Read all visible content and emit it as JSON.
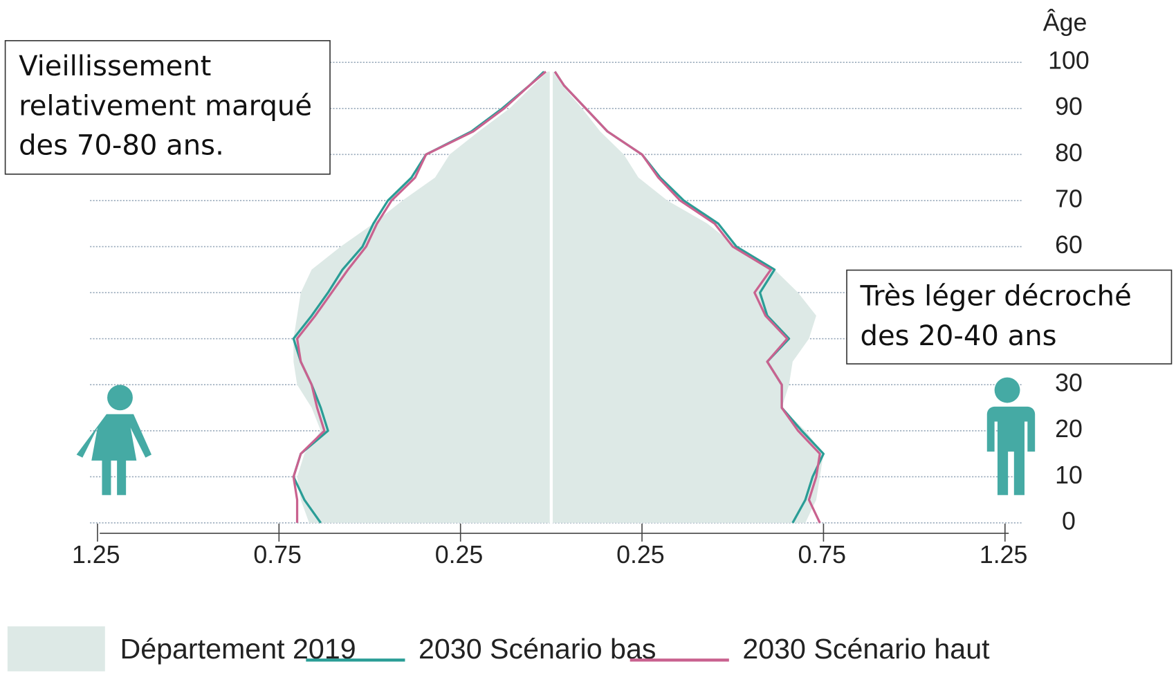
{
  "chart_data": {
    "type": "pyramid",
    "ylabel": "Âge",
    "y": [
      0,
      5,
      10,
      15,
      20,
      25,
      30,
      35,
      40,
      45,
      50,
      55,
      60,
      65,
      70,
      75,
      80,
      85,
      90,
      95,
      98
    ],
    "ylim": [
      0,
      100
    ],
    "yticks": [
      0,
      10,
      20,
      30,
      40,
      50,
      60,
      70,
      80,
      90,
      100
    ],
    "xlim": [
      0,
      1.25
    ],
    "xticks": [
      0.25,
      0.75,
      1.25
    ],
    "grid": true,
    "series": [
      {
        "name": "Département 2019",
        "style": "area",
        "color": "#dde9e6",
        "left": [
          0.667,
          0.69,
          0.7,
          0.68,
          0.635,
          0.66,
          0.7,
          0.71,
          0.71,
          0.7,
          0.69,
          0.66,
          0.58,
          0.49,
          0.41,
          0.32,
          0.28,
          0.2,
          0.115,
          0.05,
          0.01
        ],
        "right": [
          0.7,
          0.73,
          0.74,
          0.75,
          0.7,
          0.635,
          0.655,
          0.665,
          0.71,
          0.73,
          0.68,
          0.615,
          0.51,
          0.43,
          0.32,
          0.24,
          0.2,
          0.135,
          0.085,
          0.03,
          0.005
        ]
      },
      {
        "name": "2030 Scénario bas",
        "style": "line",
        "color": "#2a9d96",
        "left": [
          0.635,
          0.68,
          0.71,
          0.69,
          0.615,
          0.635,
          0.66,
          0.69,
          0.71,
          0.66,
          0.615,
          0.575,
          0.52,
          0.49,
          0.45,
          0.385,
          0.345,
          0.22,
          0.135,
          0.06,
          0.02
        ],
        "right": [
          0.665,
          0.7,
          0.72,
          0.75,
          0.69,
          0.635,
          0.635,
          0.595,
          0.655,
          0.595,
          0.575,
          0.615,
          0.51,
          0.46,
          0.365,
          0.3,
          0.25,
          0.155,
          0.095,
          0.035,
          0.01
        ]
      },
      {
        "name": "2030 Scénario haut",
        "style": "line",
        "color": "#c9628f",
        "left": [
          0.7,
          0.7,
          0.71,
          0.69,
          0.625,
          0.645,
          0.66,
          0.69,
          0.7,
          0.65,
          0.605,
          0.56,
          0.51,
          0.48,
          0.44,
          0.375,
          0.345,
          0.215,
          0.13,
          0.06,
          0.015
        ],
        "right": [
          0.74,
          0.71,
          0.73,
          0.74,
          0.68,
          0.635,
          0.635,
          0.595,
          0.65,
          0.59,
          0.56,
          0.605,
          0.5,
          0.45,
          0.355,
          0.295,
          0.25,
          0.155,
          0.095,
          0.035,
          0.01
        ]
      }
    ],
    "annotations": [
      {
        "lines": [
          "Vieillissement",
          "relativement marqué",
          "des 70-80 ans."
        ]
      },
      {
        "lines": [
          "Très léger décroché",
          "des 20-40 ans"
        ]
      }
    ]
  }
}
